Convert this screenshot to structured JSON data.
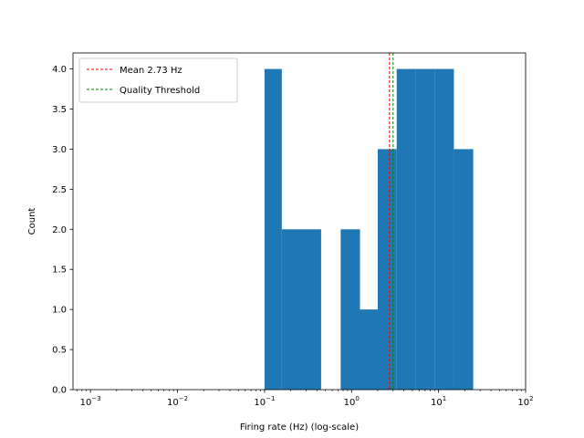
{
  "chart_data": {
    "type": "bar",
    "title": "",
    "xlabel": "Firing rate (Hz) (log-scale)",
    "ylabel": "Count",
    "xscale": "log",
    "xlim": [
      0.00063,
      100
    ],
    "ylim": [
      0,
      4.2
    ],
    "x_ticks": [
      {
        "value": 0.001,
        "base": "10",
        "exp": "−3"
      },
      {
        "value": 0.01,
        "base": "10",
        "exp": "−2"
      },
      {
        "value": 0.1,
        "base": "10",
        "exp": "−1"
      },
      {
        "value": 1,
        "base": "10",
        "exp": "0"
      },
      {
        "value": 10,
        "base": "10",
        "exp": "1"
      },
      {
        "value": 100,
        "base": "10",
        "exp": "2"
      }
    ],
    "y_ticks": [
      "0.0",
      "0.5",
      "1.0",
      "1.5",
      "2.0",
      "2.5",
      "3.0",
      "3.5",
      "4.0"
    ],
    "bar_color": "#1f77b4",
    "bins": [
      {
        "left": 0.1,
        "right": 0.158,
        "count": 4
      },
      {
        "left": 0.158,
        "right": 0.251,
        "count": 2
      },
      {
        "left": 0.251,
        "right": 0.447,
        "count": 2
      },
      {
        "left": 0.447,
        "right": 0.75,
        "count": 0
      },
      {
        "left": 0.75,
        "right": 1.25,
        "count": 2
      },
      {
        "left": 1.25,
        "right": 2.0,
        "count": 1
      },
      {
        "left": 2.0,
        "right": 3.3,
        "count": 3
      },
      {
        "left": 3.3,
        "right": 5.5,
        "count": 4
      },
      {
        "left": 5.5,
        "right": 9.0,
        "count": 4
      },
      {
        "left": 9.0,
        "right": 15.0,
        "count": 4
      },
      {
        "left": 15.0,
        "right": 25.0,
        "count": 3
      }
    ],
    "vlines": [
      {
        "name": "mean-line",
        "x": 2.73,
        "color": "#ff0000",
        "label": "Mean 2.73 Hz"
      },
      {
        "name": "quality-threshold-line",
        "x": 3.0,
        "color": "#008000",
        "label": "Quality Threshold"
      }
    ],
    "legend_position": "top-left"
  }
}
